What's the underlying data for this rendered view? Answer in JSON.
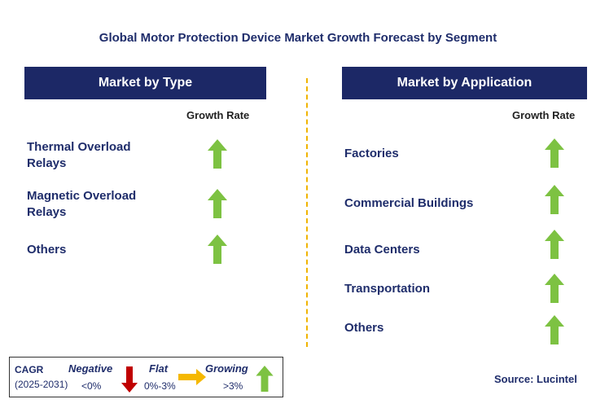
{
  "title": "Global Motor Protection Device Market  Growth Forecast by Segment",
  "left_panel": {
    "header": "Market by Type",
    "growth_label": "Growth Rate",
    "rows": [
      {
        "line1": "Thermal Overload",
        "line2": "Relays",
        "trend": "growing"
      },
      {
        "line1": "Magnetic Overload",
        "line2": "Relays",
        "trend": "growing"
      },
      {
        "line1": "Others",
        "line2": "",
        "trend": "growing"
      }
    ]
  },
  "right_panel": {
    "header": "Market by Application",
    "growth_label": "Growth Rate",
    "rows": [
      {
        "label": "Factories",
        "trend": "growing"
      },
      {
        "label": "Commercial Buildings",
        "trend": "growing"
      },
      {
        "label": "Data Centers",
        "trend": "growing"
      },
      {
        "label": "Transportation",
        "trend": "growing"
      },
      {
        "label": "Others",
        "trend": "growing"
      }
    ]
  },
  "legend": {
    "cagr_label": "CAGR",
    "period": "(2025-2031)",
    "negative_label": "Negative",
    "negative_range": "<0%",
    "flat_label": "Flat",
    "flat_range": "0%-3%",
    "growing_label": "Growing",
    "growing_range": ">3%"
  },
  "source": "Source: Lucintel",
  "colors": {
    "header_bg": "#1c2866",
    "growing_arrow": "#7dc242",
    "negative_arrow": "#c00000",
    "flat_arrow": "#f5b800",
    "divider": "#f0b400"
  }
}
